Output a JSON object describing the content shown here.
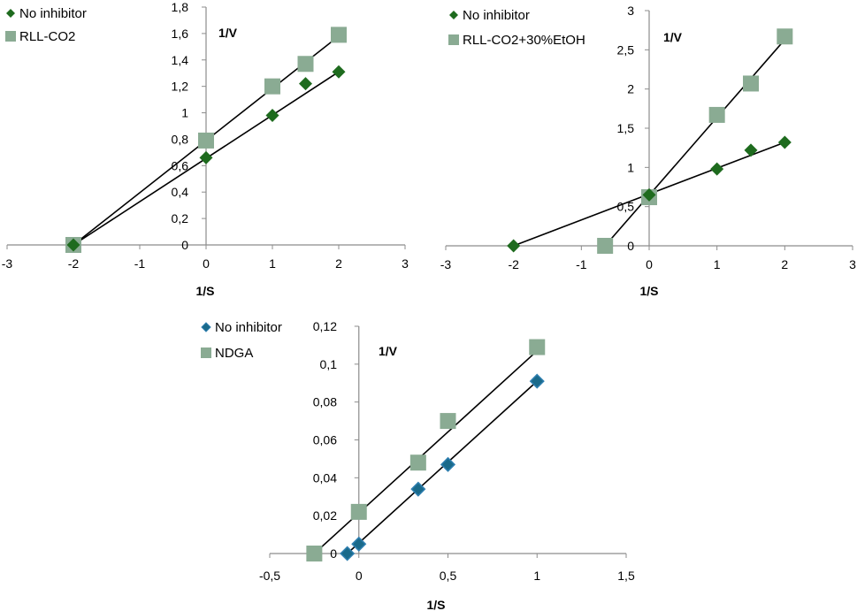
{
  "chart_data": [
    {
      "type": "scatter",
      "title": "",
      "ylabel": "1/V",
      "xlabel": "1/S",
      "xlim": [
        -3,
        3
      ],
      "ylim": [
        0,
        1.8
      ],
      "xticks": [
        "-3",
        "-2",
        "-1",
        "0",
        "1",
        "2",
        "3"
      ],
      "yticks": [
        "0",
        "0,2",
        "0,4",
        "0,6",
        "0,8",
        "1",
        "1,2",
        "1,4",
        "1,6",
        "1,8"
      ],
      "series": [
        {
          "name": "No inhibitor",
          "marker": "diamond",
          "color": "#1e6b1e",
          "x": [
            -2,
            0,
            1,
            1.5,
            2
          ],
          "y": [
            0,
            0.66,
            0.98,
            1.22,
            1.31
          ],
          "trendline": [
            [
              -2,
              0
            ],
            [
              2,
              1.31
            ]
          ]
        },
        {
          "name": "RLL-CO2",
          "marker": "square",
          "color": "#8aab93",
          "x": [
            -2,
            0,
            1,
            1.5,
            2
          ],
          "y": [
            0,
            0.79,
            1.2,
            1.37,
            1.59
          ],
          "trendline": [
            [
              -2,
              0
            ],
            [
              2,
              1.58
            ]
          ]
        }
      ]
    },
    {
      "type": "scatter",
      "title": "",
      "ylabel": "1/V",
      "xlabel": "1/S",
      "xlim": [
        -3,
        3
      ],
      "ylim": [
        0,
        3
      ],
      "xticks": [
        "-3",
        "-2",
        "-1",
        "0",
        "1",
        "2",
        "3"
      ],
      "yticks": [
        "0",
        "0,5",
        "1",
        "1,5",
        "2",
        "2,5",
        "3"
      ],
      "series": [
        {
          "name": "No inhibitor",
          "marker": "diamond",
          "color": "#1e6b1e",
          "x": [
            -2,
            0,
            1,
            1.5,
            2
          ],
          "y": [
            0,
            0.65,
            0.98,
            1.22,
            1.32
          ],
          "trendline": [
            [
              -2,
              0
            ],
            [
              2,
              1.32
            ]
          ]
        },
        {
          "name": "RLL-CO2+30%EtOH",
          "marker": "square",
          "color": "#8aab93",
          "x": [
            -0.65,
            0,
            1,
            1.5,
            2
          ],
          "y": [
            0,
            0.62,
            1.67,
            2.07,
            2.67
          ],
          "trendline": [
            [
              -0.65,
              0
            ],
            [
              2,
              2.63
            ]
          ]
        }
      ]
    },
    {
      "type": "scatter",
      "title": "",
      "ylabel": "1/V",
      "xlabel": "1/S",
      "xlim": [
        -0.5,
        1.5
      ],
      "ylim": [
        0,
        0.12
      ],
      "xticks": [
        "-0,5",
        "0",
        "0,5",
        "1",
        "1,5"
      ],
      "yticks": [
        "0",
        "0,02",
        "0,04",
        "0,06",
        "0,08",
        "0,1",
        "0,12"
      ],
      "series": [
        {
          "name": "No inhibitor",
          "marker": "diamond",
          "color": "#1a6a8a",
          "x": [
            -0.065,
            0,
            0.333,
            0.5,
            1
          ],
          "y": [
            0,
            0.005,
            0.034,
            0.047,
            0.091
          ],
          "trendline": [
            [
              -0.065,
              0
            ],
            [
              1,
              0.091
            ]
          ]
        },
        {
          "name": "NDGA",
          "marker": "square",
          "color": "#8aab93",
          "x": [
            -0.25,
            0,
            0.333,
            0.5,
            1
          ],
          "y": [
            0,
            0.022,
            0.048,
            0.07,
            0.109
          ],
          "trendline": [
            [
              -0.25,
              0
            ],
            [
              1,
              0.107
            ]
          ]
        }
      ]
    }
  ]
}
